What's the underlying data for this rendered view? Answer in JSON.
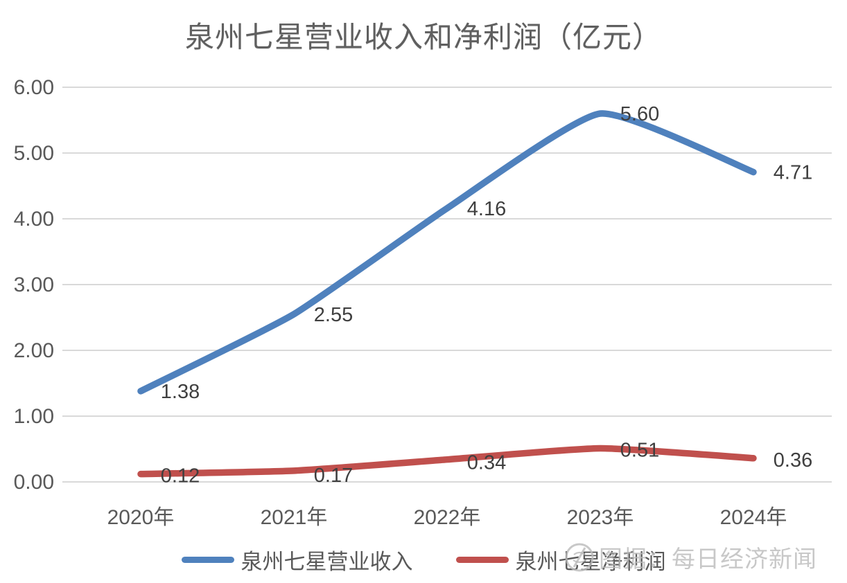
{
  "title": "泉州七星营业收入和净利润（亿元）",
  "watermark": {
    "logo": "nbd-circle-logo",
    "text": "图据：每日经济新闻"
  },
  "legend": {
    "items": [
      {
        "label": "泉州七星营业收入",
        "color": "#4F81BD"
      },
      {
        "label": "泉州七星净利润",
        "color": "#C0504D"
      }
    ]
  },
  "chart_data": {
    "type": "line",
    "title": "泉州七星营业收入和净利润（亿元）",
    "categories": [
      "2020年",
      "2021年",
      "2022年",
      "2023年",
      "2024年"
    ],
    "series": [
      {
        "name": "泉州七星营业收入",
        "color": "#4F81BD",
        "values": [
          1.38,
          2.55,
          4.16,
          5.6,
          4.71
        ],
        "labels": [
          "1.38",
          "2.55",
          "4.16",
          "5.60",
          "4.71"
        ]
      },
      {
        "name": "泉州七星净利润",
        "color": "#C0504D",
        "values": [
          0.12,
          0.17,
          0.34,
          0.51,
          0.36
        ],
        "labels": [
          "0.12",
          "0.17",
          "0.34",
          "0.51",
          "0.36"
        ]
      }
    ],
    "y_ticks": [
      "6.00",
      "5.00",
      "4.00",
      "3.00",
      "2.00",
      "1.00",
      "0.00"
    ],
    "ylim": [
      0,
      6
    ],
    "xlabel": "",
    "ylabel": "",
    "grid": true,
    "legend_position": "bottom",
    "colors": {
      "gridline": "#D9D9D9",
      "axis_text": "#595959",
      "data_label": "#3F3F3F",
      "background": "#FFFFFF"
    }
  }
}
